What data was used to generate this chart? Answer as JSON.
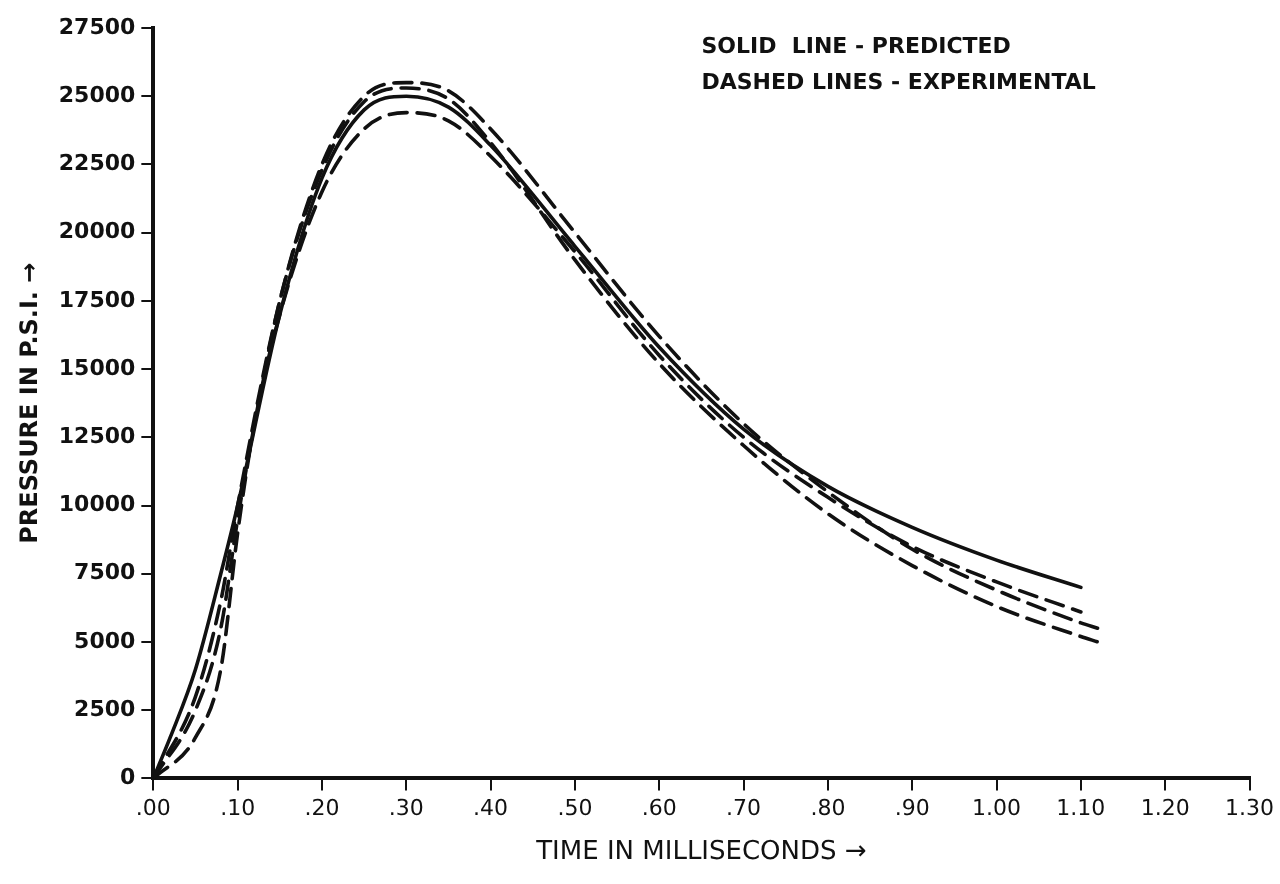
{
  "chart_data": {
    "type": "line",
    "xlabel": "TIME IN MILLISECONDS →",
    "ylabel": "PRESSURE IN P.S.I. →",
    "annotations": [
      "SOLID  LINE - PREDICTED",
      "DASHED LINES - EXPERIMENTAL"
    ],
    "xlim": [
      0,
      1.3
    ],
    "ylim": [
      0,
      27500
    ],
    "xticks": [
      {
        "value": 0,
        "label": ".00"
      },
      {
        "value": 0.1,
        "label": ".10"
      },
      {
        "value": 0.2,
        "label": ".20"
      },
      {
        "value": 0.3,
        "label": ".30"
      },
      {
        "value": 0.4,
        "label": ".40"
      },
      {
        "value": 0.5,
        "label": ".50"
      },
      {
        "value": 0.6,
        "label": ".60"
      },
      {
        "value": 0.7,
        "label": ".70"
      },
      {
        "value": 0.8,
        "label": ".80"
      },
      {
        "value": 0.9,
        "label": ".90"
      },
      {
        "value": 1,
        "label": "1.00"
      },
      {
        "value": 1.1,
        "label": "1.10"
      },
      {
        "value": 1.2,
        "label": "1.20"
      },
      {
        "value": 1.3,
        "label": "1.30"
      }
    ],
    "yticks": [
      0,
      2500,
      5000,
      7500,
      10000,
      12500,
      15000,
      17500,
      20000,
      22500,
      25000,
      27500
    ],
    "grid": false,
    "legend": false,
    "marker": "none",
    "series": [
      {
        "color": "#111111",
        "line_style": "solid",
        "x": [
          0,
          0.02,
          0.05,
          0.08,
          0.1,
          0.15,
          0.2,
          0.25,
          0.3,
          0.35,
          0.4,
          0.5,
          0.6,
          0.7,
          0.8,
          0.9,
          1,
          1.1
        ],
        "values": [
          0,
          1500,
          4000,
          7500,
          10000,
          17000,
          22000,
          24500,
          25000,
          24600,
          23200,
          19500,
          15800,
          12800,
          10700,
          9200,
          8000,
          7000
        ]
      },
      {
        "color": "#111111",
        "line_style": "dashed",
        "x": [
          0,
          0.05,
          0.08,
          0.1,
          0.12,
          0.15,
          0.2,
          0.25,
          0.3,
          0.35,
          0.4,
          0.5,
          0.6,
          0.7,
          0.8,
          0.9,
          1,
          1.1,
          1.12
        ],
        "values": [
          0,
          2500,
          5500,
          9500,
          13000,
          17500,
          22500,
          25000,
          25500,
          25200,
          23800,
          20000,
          16200,
          13000,
          10500,
          8400,
          6900,
          5700,
          5500
        ]
      },
      {
        "color": "#111111",
        "line_style": "dashed",
        "x": [
          0,
          0.05,
          0.08,
          0.1,
          0.12,
          0.15,
          0.2,
          0.25,
          0.3,
          0.35,
          0.4,
          0.5,
          0.6,
          0.7,
          0.8,
          0.9,
          1,
          1.1
        ],
        "values": [
          0,
          1500,
          4000,
          9000,
          13000,
          17000,
          21500,
          23800,
          24400,
          24100,
          22800,
          19300,
          15500,
          12500,
          10300,
          8500,
          7200,
          6100
        ]
      },
      {
        "color": "#111111",
        "line_style": "dashed",
        "x": [
          0,
          0.05,
          0.08,
          0.1,
          0.15,
          0.2,
          0.25,
          0.3,
          0.35,
          0.4,
          0.5,
          0.6,
          0.7,
          0.8,
          0.9,
          1,
          1.1,
          1.12
        ],
        "values": [
          0,
          3000,
          6500,
          10000,
          17500,
          22300,
          24800,
          25300,
          24900,
          23300,
          19000,
          15200,
          12200,
          9700,
          7800,
          6300,
          5200,
          5000
        ]
      }
    ]
  }
}
